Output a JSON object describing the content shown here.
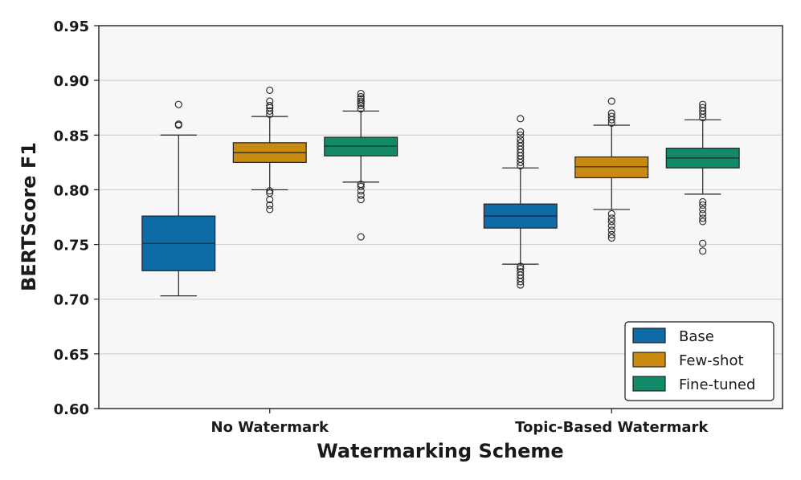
{
  "chart_data": {
    "type": "box",
    "title": "",
    "xlabel": "Watermarking Scheme",
    "ylabel": "BERTScore F1",
    "ylim": [
      0.6,
      0.95
    ],
    "yticks": [
      "0.60",
      "0.65",
      "0.70",
      "0.75",
      "0.80",
      "0.85",
      "0.90",
      "0.95"
    ],
    "ytick_values": [
      0.6,
      0.65,
      0.7,
      0.75,
      0.8,
      0.85,
      0.9,
      0.95
    ],
    "categories": [
      "No Watermark",
      "Topic-Based Watermark"
    ],
    "grid": "horizontal",
    "legend_position": "bottom-right",
    "series": [
      {
        "name": "Base",
        "color": "#0f6ba6",
        "boxes": [
          {
            "whisker_low": 0.703,
            "q1": 0.726,
            "median": 0.751,
            "q3": 0.776,
            "whisker_high": 0.85,
            "outliers": [
              0.859,
              0.86,
              0.878
            ]
          },
          {
            "whisker_low": 0.732,
            "q1": 0.765,
            "median": 0.776,
            "q3": 0.787,
            "whisker_high": 0.82,
            "outliers": [
              0.713,
              0.716,
              0.719,
              0.722,
              0.725,
              0.728,
              0.73,
              0.822,
              0.825,
              0.828,
              0.831,
              0.834,
              0.837,
              0.84,
              0.843,
              0.846,
              0.85,
              0.853,
              0.865
            ]
          }
        ]
      },
      {
        "name": "Few-shot",
        "color": "#c98a12",
        "boxes": [
          {
            "whisker_low": 0.8,
            "q1": 0.825,
            "median": 0.834,
            "q3": 0.843,
            "whisker_high": 0.867,
            "outliers": [
              0.782,
              0.786,
              0.791,
              0.797,
              0.799,
              0.869,
              0.872,
              0.875,
              0.877,
              0.881,
              0.891
            ]
          },
          {
            "whisker_low": 0.782,
            "q1": 0.811,
            "median": 0.821,
            "q3": 0.83,
            "whisker_high": 0.859,
            "outliers": [
              0.756,
              0.759,
              0.763,
              0.767,
              0.771,
              0.774,
              0.778,
              0.861,
              0.864,
              0.867,
              0.87,
              0.881
            ]
          }
        ]
      },
      {
        "name": "Fine-tuned",
        "color": "#138a67",
        "boxes": [
          {
            "whisker_low": 0.807,
            "q1": 0.831,
            "median": 0.84,
            "q3": 0.848,
            "whisker_high": 0.872,
            "outliers": [
              0.757,
              0.791,
              0.795,
              0.799,
              0.803,
              0.805,
              0.874,
              0.877,
              0.879,
              0.881,
              0.883,
              0.885,
              0.888
            ]
          },
          {
            "whisker_low": 0.796,
            "q1": 0.82,
            "median": 0.829,
            "q3": 0.838,
            "whisker_high": 0.864,
            "outliers": [
              0.744,
              0.751,
              0.771,
              0.774,
              0.778,
              0.782,
              0.786,
              0.789,
              0.866,
              0.869,
              0.872,
              0.875,
              0.878
            ]
          }
        ]
      }
    ]
  }
}
